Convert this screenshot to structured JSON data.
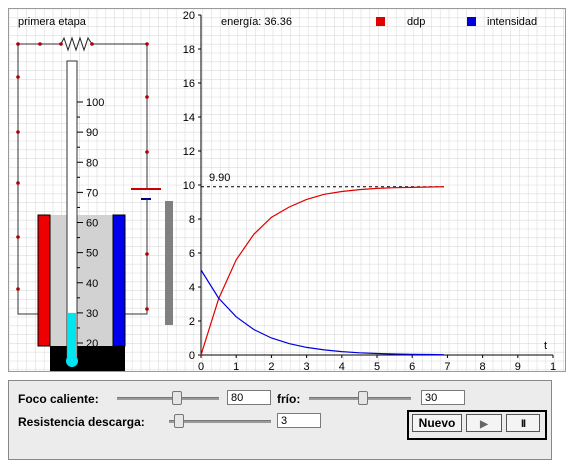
{
  "circuit": {
    "stage_label": "primera etapa"
  },
  "thermometer": {
    "scale": [
      100,
      90,
      80,
      70,
      60,
      50,
      40,
      30,
      20
    ],
    "level": 30
  },
  "plot": {
    "energy_label": "energía: 36.36",
    "legend": [
      {
        "name": "ddp",
        "color": "#e00000"
      },
      {
        "name": "intensidad",
        "color": "#0000dd"
      }
    ],
    "asymptote_label": "9.90",
    "x_axis_label": "t",
    "x_ticks": [
      "0",
      "1",
      "2",
      "3",
      "4",
      "5",
      "6",
      "7",
      "8",
      "9",
      "1"
    ],
    "y_ticks": [
      "0",
      "2",
      "4",
      "6",
      "8",
      "10",
      "12",
      "14",
      "16",
      "18",
      "20"
    ]
  },
  "chart_data": {
    "type": "line",
    "xlabel": "t",
    "xlim": [
      0,
      10
    ],
    "ylim": [
      0,
      20
    ],
    "grid": true,
    "legend_position": "top-right",
    "series": [
      {
        "name": "ddp",
        "color": "#e00000",
        "x": [
          0,
          0.5,
          1,
          1.5,
          2,
          2.5,
          3,
          3.5,
          4,
          4.5,
          5,
          5.5,
          6,
          6.5,
          6.9
        ],
        "y": [
          0,
          3.3,
          5.6,
          7.1,
          8.1,
          8.7,
          9.15,
          9.45,
          9.62,
          9.73,
          9.8,
          9.84,
          9.86,
          9.88,
          9.9
        ]
      },
      {
        "name": "intensidad",
        "color": "#0000dd",
        "x": [
          0,
          0.5,
          1,
          1.5,
          2,
          2.5,
          3,
          3.5,
          4,
          4.5,
          5,
          5.5,
          6,
          6.5,
          6.9
        ],
        "y": [
          5,
          3.35,
          2.25,
          1.5,
          1.0,
          0.67,
          0.45,
          0.3,
          0.2,
          0.13,
          0.09,
          0.06,
          0.04,
          0.03,
          0.02
        ]
      }
    ],
    "annotations": [
      {
        "text": "9.90",
        "y": 9.9
      }
    ]
  },
  "controls": {
    "hot_label": "Foco caliente:",
    "hot_value": "80",
    "cold_label": "frío:",
    "cold_value": "30",
    "resistance_label": "Resistencia descarga:",
    "resistance_value": "3",
    "new_label": "Nuevo",
    "play_glyph": "▶",
    "pause_glyph": "II"
  }
}
